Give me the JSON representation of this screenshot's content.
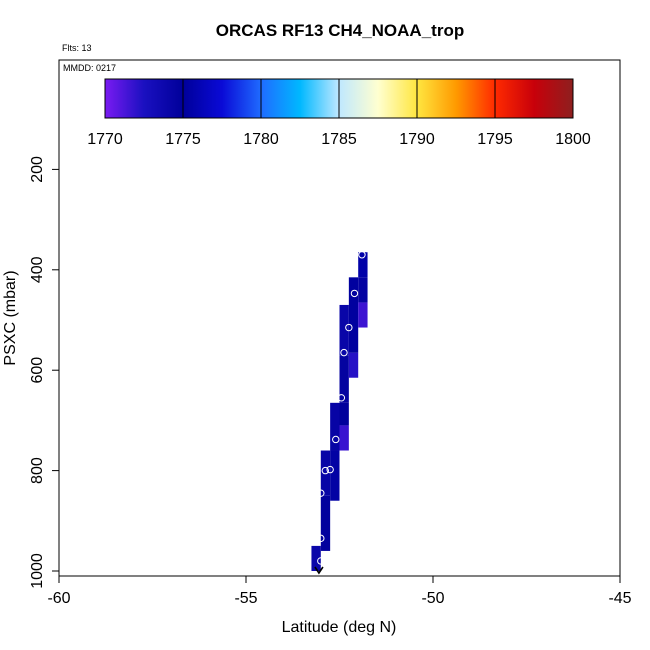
{
  "chart_data": {
    "type": "heatmap",
    "title": "ORCAS RF13 CH4_NOAA_trop",
    "flts_label": "Flts: 13",
    "mmdd_label": "MMDD: 0217",
    "xlabel": "Latitude (deg N)",
    "ylabel": "PSXC (mbar)",
    "xlim": [
      -60,
      -45
    ],
    "ylim": [
      1000,
      0
    ],
    "x_ticks": [
      -60,
      -55,
      -50,
      -45
    ],
    "y_ticks": [
      200,
      400,
      600,
      800,
      1000
    ],
    "colorbar": {
      "min": 1770,
      "max": 1800,
      "ticks": [
        1770,
        1775,
        1780,
        1785,
        1790,
        1795,
        1800
      ],
      "colors": [
        "#7a1bf2",
        "#1a10c0",
        "#00009a",
        "#0a0ad6",
        "#1f6bff",
        "#00b8ff",
        "#bfe8ff",
        "#ffffd0",
        "#ffe640",
        "#ff9a00",
        "#ff2a00",
        "#c8000a",
        "#8e1f1f"
      ]
    },
    "cells": [
      {
        "lat_min": -53.25,
        "lat_max": -53.0,
        "p_top": 950,
        "p_bot": 1000,
        "value": 1774.0
      },
      {
        "lat_min": -53.0,
        "lat_max": -52.75,
        "p_top": 850,
        "p_bot": 960,
        "value": 1774.8
      },
      {
        "lat_min": -53.0,
        "lat_max": -52.75,
        "p_top": 760,
        "p_bot": 850,
        "value": 1774.2
      },
      {
        "lat_min": -52.75,
        "lat_max": -52.5,
        "p_top": 760,
        "p_bot": 860,
        "value": 1775.4
      },
      {
        "lat_min": -52.75,
        "lat_max": -52.5,
        "p_top": 665,
        "p_bot": 760,
        "value": 1774.3
      },
      {
        "lat_min": -52.5,
        "lat_max": -52.25,
        "p_top": 665,
        "p_bot": 710,
        "value": 1774.9
      },
      {
        "lat_min": -52.5,
        "lat_max": -52.25,
        "p_top": 710,
        "p_bot": 760,
        "value": 1771.7
      },
      {
        "lat_min": -52.5,
        "lat_max": -52.25,
        "p_top": 570,
        "p_bot": 665,
        "value": 1774.6
      },
      {
        "lat_min": -52.5,
        "lat_max": -52.25,
        "p_top": 470,
        "p_bot": 570,
        "value": 1774.1
      },
      {
        "lat_min": -52.25,
        "lat_max": -52.0,
        "p_top": 565,
        "p_bot": 615,
        "value": 1772.2
      },
      {
        "lat_min": -52.25,
        "lat_max": -52.0,
        "p_top": 415,
        "p_bot": 565,
        "value": 1775.2
      },
      {
        "lat_min": -52.0,
        "lat_max": -51.75,
        "p_top": 465,
        "p_bot": 515,
        "value": 1771.6
      },
      {
        "lat_min": -52.0,
        "lat_max": -51.75,
        "p_top": 415,
        "p_bot": 465,
        "value": 1774.5
      },
      {
        "lat_min": -52.0,
        "lat_max": -51.75,
        "p_top": 365,
        "p_bot": 415,
        "value": 1775.6
      }
    ],
    "points": [
      {
        "lat": -53.0,
        "p": 980
      },
      {
        "lat": -53.0,
        "p": 935
      },
      {
        "lat": -53.0,
        "p": 845
      },
      {
        "lat": -52.88,
        "p": 800
      },
      {
        "lat": -52.75,
        "p": 798
      },
      {
        "lat": -52.6,
        "p": 738
      },
      {
        "lat": -52.45,
        "p": 655
      },
      {
        "lat": -52.38,
        "p": 565
      },
      {
        "lat": -52.25,
        "p": 515
      },
      {
        "lat": -52.1,
        "p": 447
      },
      {
        "lat": -51.9,
        "p": 370
      }
    ],
    "start_marker": {
      "lat": -53.05,
      "p": 1000
    }
  }
}
